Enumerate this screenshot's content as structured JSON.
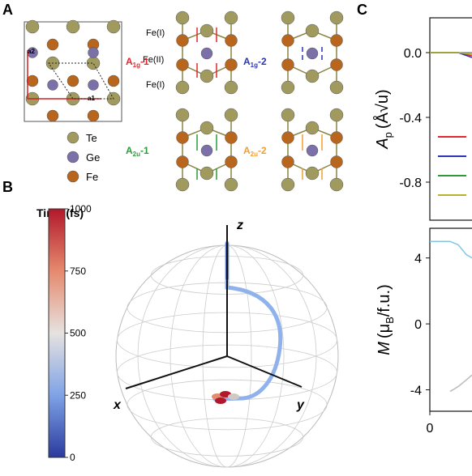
{
  "panel_a": {
    "label": "A",
    "lattice_vectors": [
      "a2",
      "a1"
    ],
    "site_labels": [
      "Fe(I)",
      "Fe(II)",
      "Fe(I)"
    ],
    "modes": [
      {
        "main": "A",
        "sub": "1g",
        "suffix": "-1",
        "color": "#e0282e"
      },
      {
        "main": "A",
        "sub": "1g",
        "suffix": "-2",
        "color": "#2b35b5"
      },
      {
        "main": "A",
        "sub": "2u",
        "suffix": "-1",
        "color": "#2e9a3a"
      },
      {
        "main": "A",
        "sub": "2u",
        "suffix": "-2",
        "color": "#f0a030"
      }
    ],
    "legend": [
      {
        "name": "Te",
        "color": "#a09a5e"
      },
      {
        "name": "Ge",
        "color": "#7b70a8"
      },
      {
        "name": "Fe",
        "color": "#b8651e"
      }
    ]
  },
  "panel_b": {
    "label": "B",
    "colorbar": {
      "title": "Time (fs)",
      "lim": [
        0,
        1000
      ],
      "ticks": [
        1000,
        750,
        500,
        250,
        0
      ]
    },
    "axes": [
      "z",
      "x",
      "y"
    ]
  },
  "panel_c": {
    "label": "C"
  },
  "chart_data": [
    {
      "type": "line",
      "ylabel": {
        "main": "A",
        "sub": "p",
        "unit": "(Å√u)"
      },
      "xlim": [
        0,
        1000
      ],
      "ylim": [
        -1.035,
        0.215
      ],
      "yticks": [
        {
          "value": 0,
          "label": "0.0"
        },
        {
          "value": -0.4,
          "label": "-0.4"
        },
        {
          "value": -0.8,
          "label": "-0.8"
        }
      ],
      "series": [
        {
          "color": "#888888",
          "x": [
            0,
            60,
            104
          ],
          "values": [
            0,
            0,
            0
          ]
        },
        {
          "color": "#e0282e",
          "x": [
            0,
            70,
            104
          ],
          "values": [
            0,
            0,
            -0.02
          ]
        },
        {
          "color": "#2b35b5",
          "x": [
            0,
            70,
            104
          ],
          "values": [
            0,
            0,
            -0.03
          ]
        },
        {
          "color": "#2e9a3a",
          "x": [
            0,
            70,
            104
          ],
          "values": [
            0,
            0,
            -0.01
          ]
        },
        {
          "color": "#b8b030",
          "x": [
            0,
            70,
            104
          ],
          "values": [
            0,
            0,
            -0.01
          ]
        }
      ]
    },
    {
      "type": "line",
      "ylabel": {
        "main": "M",
        "open": "(μ",
        "sub": "B",
        "close": "/f.u.)"
      },
      "xlim": [
        0,
        1000
      ],
      "ylim": [
        -5.3,
        5.8
      ],
      "xticks": [
        0
      ],
      "yticks": [
        4,
        0,
        -4
      ],
      "series": [
        {
          "color": "#7ec8e3",
          "x": [
            0,
            50,
            70,
            90,
            104
          ],
          "values": [
            5,
            5,
            4.8,
            4.2,
            4.0
          ]
        },
        {
          "color": "#bbbbbb",
          "x": [
            50,
            70,
            90,
            104
          ],
          "values": [
            -4.1,
            -3.8,
            -3.4,
            -3.1
          ]
        }
      ]
    }
  ]
}
